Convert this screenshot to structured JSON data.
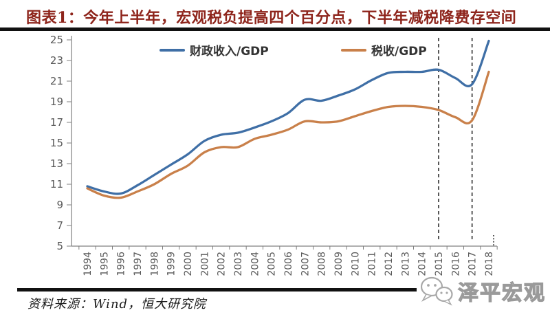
{
  "page": {
    "title": "图表1：今年上半年，宏观税负提高四个百分点，下半年减税降费存空间",
    "source": "资料来源：Wind，恒大研究院",
    "watermark": "泽平宏观"
  },
  "colors": {
    "title": "#8e251c",
    "rule": "#111111",
    "axis": "#7f7f7f",
    "tick_label": "#595959",
    "dashed_line": "#3a3a3a",
    "series_fiscal": "#3f6fa6",
    "series_tax": "#c9804a"
  },
  "chart_data": {
    "type": "line",
    "x": [
      "1994",
      "1995",
      "1996",
      "1997",
      "1998",
      "1999",
      "2000",
      "2001",
      "2002",
      "2003",
      "2004",
      "2005",
      "2006",
      "2007",
      "2008",
      "2009",
      "2010",
      "2011",
      "2012",
      "2013",
      "2014",
      "2015",
      "2016",
      "2017",
      "2018"
    ],
    "series": [
      {
        "name": "财政收入/GDP",
        "color": "#3f6fa6",
        "values": [
          10.8,
          10.3,
          10.1,
          10.9,
          11.9,
          12.9,
          13.9,
          15.2,
          15.8,
          16.0,
          16.5,
          17.1,
          17.9,
          19.2,
          19.1,
          19.6,
          20.2,
          21.1,
          21.8,
          21.9,
          21.9,
          22.1,
          21.3,
          20.7,
          24.9
        ]
      },
      {
        "name": "税收/GDP",
        "color": "#c9804a",
        "values": [
          10.6,
          9.9,
          9.7,
          10.3,
          11.0,
          12.0,
          12.8,
          14.1,
          14.6,
          14.6,
          15.4,
          15.8,
          16.3,
          17.1,
          17.0,
          17.1,
          17.6,
          18.1,
          18.5,
          18.6,
          18.5,
          18.2,
          17.5,
          17.2,
          21.9
        ]
      }
    ],
    "xlabel": "",
    "ylabel": "",
    "ylim": [
      5,
      25
    ],
    "ytick_step": 2,
    "yticks": [
      5,
      7,
      9,
      11,
      13,
      15,
      17,
      19,
      21,
      23,
      25
    ],
    "grid": false,
    "legend_position": "top-center",
    "annotations": {
      "vlines_dashed": [
        "2015",
        "2017"
      ],
      "dotted_tick": "2018"
    }
  }
}
